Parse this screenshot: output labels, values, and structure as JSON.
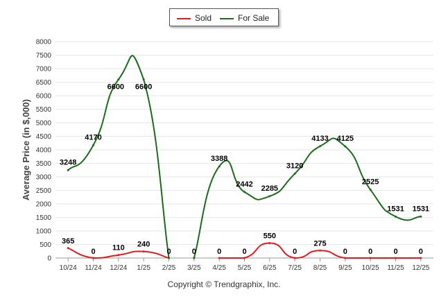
{
  "chart_data": {
    "type": "line",
    "title": "",
    "ylabel": "Average Price (in $,000)",
    "xlabel": "",
    "ylim": [
      0,
      8000
    ],
    "yticks": [
      "0",
      "500",
      "1000",
      "1500",
      "2000",
      "2500",
      "3000",
      "3500",
      "4000",
      "4500",
      "5000",
      "5500",
      "6000",
      "6500",
      "7000",
      "7500",
      "8000"
    ],
    "categories": [
      "10/24",
      "11/24",
      "12/24",
      "1/25",
      "2/25",
      "3/25",
      "4/25",
      "5/25",
      "6/25",
      "7/25",
      "8/25",
      "9/25",
      "10/25",
      "11/25",
      "12/25"
    ],
    "series": [
      {
        "name": "Sold",
        "color": "#e31a1c",
        "values": [
          365,
          0,
          110,
          240,
          0,
          0,
          0,
          0,
          550,
          0,
          275,
          0,
          0,
          0,
          0
        ],
        "labels": [
          "365",
          "0",
          "110",
          "240",
          "0",
          "0",
          "0",
          "0",
          "550",
          "0",
          "275",
          "0",
          "0",
          "0",
          "0"
        ]
      },
      {
        "name": "For Sale",
        "color": "#1a6b1a",
        "values": [
          3248,
          4170,
          6600,
          6600,
          0,
          0,
          3388,
          2442,
          2285,
          3120,
          4133,
          4125,
          2525,
          1531,
          1531
        ],
        "labels": [
          "3248",
          "4170",
          "6600",
          "6600",
          "",
          "",
          "3388",
          "2442",
          "2285",
          "3120",
          "4133",
          "4125",
          "2525",
          "1531",
          "1531"
        ]
      }
    ],
    "legend": "top-center",
    "grid": true
  },
  "footer": {
    "copyright": "Copyright © Trendgraphix, Inc."
  }
}
